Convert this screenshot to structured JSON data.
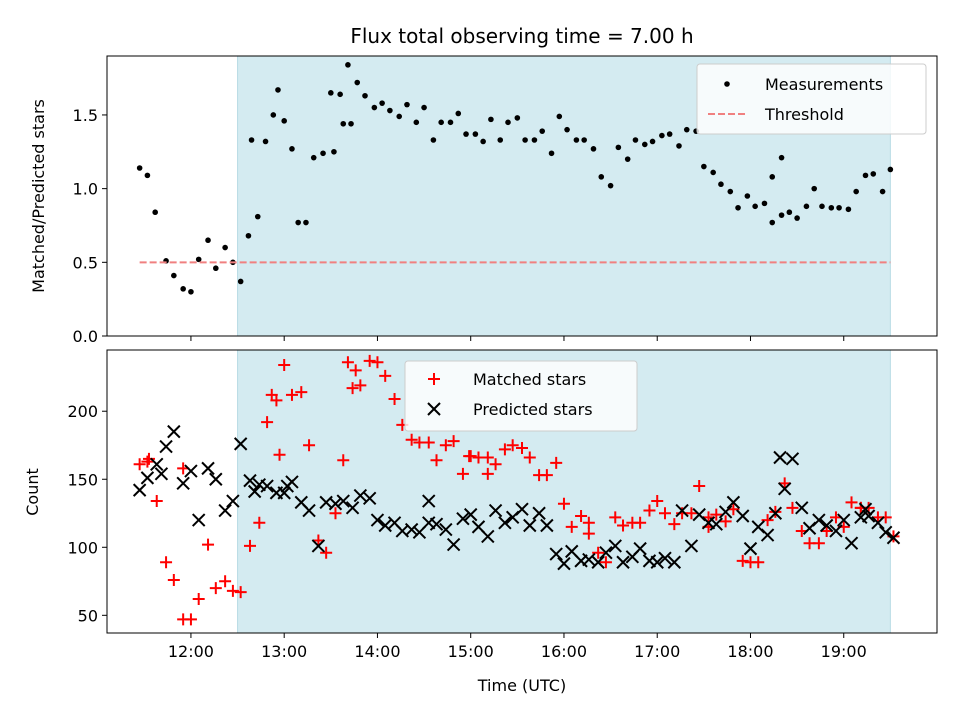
{
  "chart_data": {
    "type": "scatter",
    "title": "Flux total observing time = 7.00 h",
    "xlabel": "Time (UTC)",
    "x_tick_labels": [
      "12:00",
      "13:00",
      "14:00",
      "15:00",
      "16:00",
      "17:00",
      "18:00",
      "19:00"
    ],
    "x_ticks": [
      "12:00",
      "13:00",
      "14:00",
      "15:00",
      "16:00",
      "17:00",
      "18:00",
      "19:00"
    ],
    "xlim": [
      "11:06",
      "20:00"
    ],
    "shaded_region": {
      "x": [
        "12:30",
        "19:30"
      ],
      "color": "#d4ebf1"
    },
    "panels": [
      {
        "ylabel": "Matched/Predicted stars",
        "ylim": [
          0,
          1.9
        ],
        "y_ticks": [
          0.0,
          0.5,
          1.0,
          1.5
        ],
        "y_tick_labels": [
          "0.0",
          "0.5",
          "1.0",
          "1.5"
        ],
        "legend_position": "top-right",
        "series": [
          {
            "name": "Measurements",
            "marker": "dot",
            "color": "#000000",
            "x": [
              "11:27",
              "11:32",
              "11:37",
              "11:44",
              "11:49",
              "11:55",
              "12:00",
              "12:05",
              "12:11",
              "12:16",
              "12:22",
              "12:27",
              "12:32",
              "12:37",
              "12:43",
              "12:48",
              "12:53",
              "13:00",
              "13:05",
              "13:09",
              "13:14",
              "13:19",
              "13:25",
              "13:30",
              "13:36",
              "13:41",
              "13:47",
              "13:52",
              "13:58",
              "14:03",
              "14:08",
              "14:14",
              "14:19",
              "14:25",
              "14:30",
              "14:36",
              "14:41",
              "14:47",
              "14:52",
              "14:57",
              "15:03",
              "15:08",
              "15:13",
              "15:19",
              "15:24",
              "15:30",
              "15:35",
              "15:41",
              "15:46",
              "15:52",
              "15:57",
              "16:02",
              "16:08",
              "16:13",
              "16:19",
              "16:24",
              "16:30",
              "16:35",
              "16:41",
              "16:46",
              "16:52",
              "16:57",
              "17:03",
              "17:08",
              "17:14",
              "17:19",
              "17:25",
              "17:30",
              "17:36",
              "17:41",
              "17:47",
              "17:52",
              "17:58",
              "18:03",
              "18:09",
              "18:14",
              "18:20",
              "18:25",
              "18:30",
              "18:36",
              "18:41",
              "18:46",
              "18:52",
              "18:57",
              "19:03",
              "19:08",
              "19:14",
              "19:19",
              "19:25",
              "19:30",
              "18:14",
              "18:20",
              "13:32",
              "13:38",
              "13:43",
              "12:56",
              "12:39"
            ],
            "y": [
              1.14,
              1.09,
              0.84,
              0.51,
              0.41,
              0.32,
              0.3,
              0.52,
              0.65,
              0.46,
              0.6,
              0.5,
              0.37,
              0.68,
              0.81,
              1.32,
              1.5,
              1.46,
              1.27,
              0.77,
              0.77,
              1.21,
              1.24,
              1.65,
              1.64,
              1.84,
              1.72,
              1.63,
              1.55,
              1.58,
              1.53,
              1.49,
              1.57,
              1.45,
              1.55,
              1.33,
              1.45,
              1.45,
              1.51,
              1.37,
              1.37,
              1.32,
              1.47,
              1.33,
              1.45,
              1.48,
              1.33,
              1.33,
              1.39,
              1.24,
              1.49,
              1.4,
              1.33,
              1.33,
              1.27,
              1.08,
              1.02,
              1.28,
              1.2,
              1.33,
              1.3,
              1.32,
              1.36,
              1.37,
              1.29,
              1.4,
              1.39,
              1.15,
              1.11,
              1.03,
              0.98,
              0.87,
              0.95,
              0.88,
              0.9,
              0.77,
              0.82,
              0.84,
              0.8,
              0.88,
              1.0,
              0.88,
              0.87,
              0.87,
              0.86,
              0.98,
              1.09,
              1.1,
              0.98,
              1.13,
              1.08,
              1.21,
              1.25,
              1.44,
              1.44,
              1.67,
              1.33
            ]
          },
          {
            "name": "Threshold",
            "marker": "dashed-line",
            "color": "#f08080",
            "x": [
              "11:27",
              "19:30"
            ],
            "y": [
              0.5,
              0.5
            ]
          }
        ]
      },
      {
        "ylabel": "Count",
        "ylim": [
          37,
          245
        ],
        "y_ticks": [
          50,
          100,
          150,
          200
        ],
        "y_tick_labels": [
          "50",
          "100",
          "150",
          "200"
        ],
        "legend_position": "top-center",
        "series": [
          {
            "name": "Matched stars",
            "marker": "plus",
            "color": "#ff0000",
            "x": [
              "11:27",
              "11:32",
              "11:38",
              "11:44",
              "11:49",
              "11:55",
              "12:00",
              "12:05",
              "12:11",
              "12:16",
              "12:22",
              "12:27",
              "12:32",
              "12:38",
              "12:44",
              "12:49",
              "12:55",
              "13:00",
              "13:05",
              "13:11",
              "13:16",
              "13:22",
              "13:27",
              "13:33",
              "13:38",
              "13:44",
              "13:49",
              "13:55",
              "14:00",
              "14:05",
              "14:11",
              "14:16",
              "14:22",
              "14:27",
              "14:33",
              "14:38",
              "14:44",
              "14:49",
              "14:55",
              "15:00",
              "15:05",
              "15:11",
              "15:16",
              "15:22",
              "15:27",
              "15:33",
              "15:38",
              "15:44",
              "15:49",
              "15:55",
              "16:00",
              "16:05",
              "16:11",
              "16:16",
              "16:22",
              "16:27",
              "16:33",
              "16:38",
              "16:44",
              "16:49",
              "16:55",
              "17:00",
              "17:05",
              "17:11",
              "17:16",
              "17:22",
              "17:27",
              "17:33",
              "17:38",
              "17:44",
              "17:49",
              "17:55",
              "18:00",
              "18:05",
              "18:11",
              "18:16",
              "18:22",
              "18:27",
              "18:33",
              "18:38",
              "18:44",
              "18:49",
              "18:55",
              "19:00",
              "19:05",
              "19:11",
              "19:16",
              "19:22",
              "19:27",
              "19:32",
              "11:33",
              "11:55",
              "12:57",
              "12:52",
              "13:41",
              "13:46",
              "14:59",
              "15:11",
              "16:16",
              "17:33",
              "19:11"
            ],
            "y": [
              161,
              163,
              134,
              89,
              76,
              47,
              47,
              62,
              102,
              70,
              75,
              68,
              67,
              101,
              118,
              192,
              208,
              234,
              212,
              214,
              175,
              105,
              96,
              125,
              164,
              217,
              219,
              237,
              236,
              226,
              209,
              190,
              179,
              177,
              177,
              164,
              175,
              178,
              154,
              167,
              166,
              154,
              161,
              172,
              175,
              173,
              166,
              153,
              153,
              162,
              132,
              115,
              123,
              110,
              96,
              89,
              122,
              116,
              118,
              118,
              127,
              134,
              125,
              117,
              125,
              125,
              145,
              122,
              124,
              119,
              128,
              90,
              89,
              89,
              120,
              126,
              147,
              129,
              112,
              103,
              103,
              112,
              122,
              115,
              133,
              129,
              129,
              122,
              122,
              108,
              165,
              158,
              168,
              212,
              236,
              230,
              167,
              166,
              118,
              115,
              129
            ]
          },
          {
            "name": "Predicted stars",
            "marker": "x",
            "color": "#000000",
            "x": [
              "11:27",
              "11:32",
              "11:38",
              "11:44",
              "11:49",
              "11:55",
              "12:00",
              "12:05",
              "12:11",
              "12:16",
              "12:22",
              "12:27",
              "12:32",
              "12:38",
              "12:44",
              "12:49",
              "12:55",
              "13:00",
              "13:05",
              "13:11",
              "13:16",
              "13:22",
              "13:27",
              "13:33",
              "13:38",
              "13:44",
              "13:49",
              "13:55",
              "14:00",
              "14:05",
              "14:11",
              "14:16",
              "14:22",
              "14:27",
              "14:33",
              "14:38",
              "14:44",
              "14:49",
              "14:55",
              "15:00",
              "15:05",
              "15:11",
              "15:16",
              "15:22",
              "15:27",
              "15:33",
              "15:38",
              "15:44",
              "15:49",
              "15:55",
              "16:00",
              "16:05",
              "16:11",
              "16:16",
              "16:22",
              "16:27",
              "16:33",
              "16:38",
              "16:44",
              "16:49",
              "16:55",
              "17:00",
              "17:05",
              "17:11",
              "17:16",
              "17:22",
              "17:27",
              "17:33",
              "17:38",
              "17:44",
              "17:49",
              "17:55",
              "18:00",
              "18:05",
              "18:11",
              "18:16",
              "18:22",
              "18:27",
              "18:33",
              "18:38",
              "18:44",
              "18:49",
              "18:55",
              "19:00",
              "19:05",
              "19:11",
              "19:16",
              "19:22",
              "19:27",
              "19:32",
              "11:41",
              "12:41",
              "13:02",
              "14:33",
              "18:19",
              "19:14"
            ],
            "y": [
              142,
              151,
              161,
              174,
              185,
              147,
              156,
              120,
              158,
              150,
              127,
              134,
              176,
              149,
              146,
              145,
              140,
              140,
              148,
              133,
              127,
              101,
              133,
              132,
              134,
              129,
              138,
              136,
              120,
              116,
              118,
              112,
              113,
              111,
              134,
              117,
              113,
              102,
              121,
              124,
              115,
              108,
              127,
              118,
              122,
              128,
              116,
              125,
              116,
              95,
              88,
              97,
              90,
              91,
              89,
              96,
              101,
              89,
              93,
              99,
              90,
              89,
              92,
              89,
              127,
              101,
              124,
              118,
              117,
              126,
              133,
              123,
              99,
              115,
              109,
              125,
              143,
              165,
              129,
              114,
              120,
              116,
              112,
              120,
              103,
              122,
              123,
              118,
              111,
              107,
              154,
              141,
              145,
              118,
              166,
              128
            ]
          }
        ]
      }
    ]
  }
}
